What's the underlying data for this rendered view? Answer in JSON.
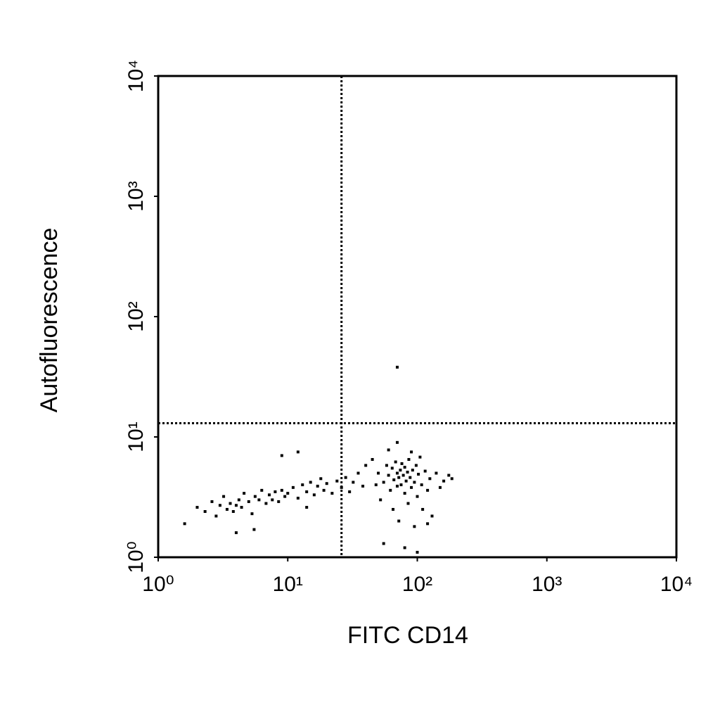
{
  "chart_data": {
    "type": "scatter",
    "x_label": "FITC CD14",
    "y_label": "Autofluorescence",
    "xscale": "log",
    "yscale": "log",
    "xlim": [
      1,
      10000
    ],
    "ylim": [
      1,
      10000
    ],
    "xticks": [
      {
        "value": 1,
        "label": "10⁰"
      },
      {
        "value": 10,
        "label": "10¹"
      },
      {
        "value": 100,
        "label": "10²"
      },
      {
        "value": 1000,
        "label": "10³"
      },
      {
        "value": 10000,
        "label": "10⁴"
      }
    ],
    "yticks": [
      {
        "value": 1,
        "label": "10⁰"
      },
      {
        "value": 10,
        "label": "10¹"
      },
      {
        "value": 100,
        "label": "10²"
      },
      {
        "value": 1000,
        "label": "10³"
      },
      {
        "value": 10000,
        "label": "10⁴"
      }
    ],
    "quadrant_lines": {
      "x": 26,
      "y": 13
    },
    "color": "#000000",
    "x": [
      1.6,
      2.0,
      2.3,
      2.6,
      2.8,
      3.0,
      3.2,
      3.4,
      3.6,
      3.8,
      4.0,
      4.2,
      4.4,
      4.6,
      5.0,
      5.3,
      5.6,
      6.0,
      6.3,
      6.8,
      7.2,
      7.6,
      8.0,
      8.5,
      9.0,
      9.5,
      10,
      11,
      12,
      13,
      14,
      15,
      16,
      17,
      18,
      19,
      20,
      22,
      24,
      26,
      28,
      30,
      32,
      35,
      38,
      4.0,
      12,
      9,
      5.5,
      14,
      50,
      55,
      58,
      60,
      62,
      64,
      66,
      68,
      70,
      70,
      72,
      74,
      75,
      76,
      78,
      80,
      80,
      82,
      84,
      85,
      86,
      88,
      90,
      92,
      95,
      98,
      100,
      102,
      105,
      108,
      110,
      115,
      120,
      125,
      130,
      140,
      150,
      160,
      175,
      185,
      65,
      72,
      95,
      120,
      55,
      100,
      80,
      60,
      90,
      70,
      45,
      48,
      52,
      40,
      70
    ],
    "values": [
      1.9,
      2.6,
      2.4,
      2.9,
      2.2,
      2.7,
      3.2,
      2.5,
      2.8,
      2.4,
      2.7,
      3.0,
      2.6,
      3.4,
      2.9,
      2.3,
      3.2,
      3.0,
      3.6,
      2.8,
      3.3,
      3.0,
      3.5,
      2.9,
      3.6,
      3.2,
      3.4,
      3.8,
      3.1,
      4.0,
      3.5,
      4.2,
      3.3,
      3.9,
      4.5,
      3.6,
      4.1,
      3.4,
      4.3,
      3.8,
      4.6,
      3.5,
      4.2,
      5.0,
      3.9,
      1.6,
      7.5,
      7.0,
      1.7,
      2.6,
      5.0,
      4.2,
      5.8,
      4.8,
      3.6,
      5.5,
      4.4,
      6.2,
      5.0,
      3.9,
      4.6,
      5.3,
      4.0,
      6.0,
      4.8,
      5.6,
      3.4,
      4.3,
      5.1,
      2.8,
      6.5,
      4.6,
      3.8,
      5.3,
      4.2,
      5.8,
      3.2,
      4.9,
      6.8,
      4.0,
      2.5,
      5.2,
      3.6,
      4.5,
      2.2,
      5.0,
      3.8,
      4.3,
      4.8,
      4.5,
      2.5,
      2.0,
      1.8,
      1.9,
      1.3,
      1.1,
      1.2,
      7.8,
      7.5,
      9.0,
      6.5,
      4.0,
      3.0,
      5.8,
      38
    ]
  }
}
